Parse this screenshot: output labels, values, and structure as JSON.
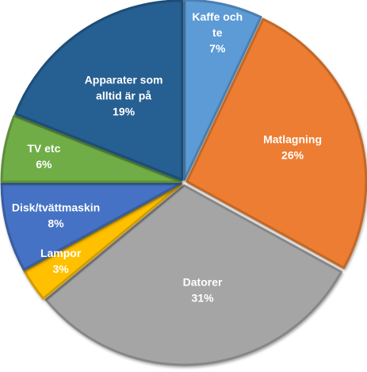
{
  "chart_data": {
    "type": "pie",
    "start_angle_deg": 0,
    "direction": "clockwise",
    "slices": [
      {
        "label_lines": [
          "Kaffe och",
          "te"
        ],
        "value_label": "7%",
        "value": 7,
        "color": "#5b9bd5"
      },
      {
        "label_lines": [
          "Matlagning"
        ],
        "value_label": "26%",
        "value": 26,
        "color": "#ed7d31"
      },
      {
        "label_lines": [
          "Datorer"
        ],
        "value_label": "31%",
        "value": 31,
        "color": "#a5a5a5"
      },
      {
        "label_lines": [
          "Lampor"
        ],
        "value_label": "3%",
        "value": 3,
        "color": "#ffc000"
      },
      {
        "label_lines": [
          "Disk/tvättmaskin"
        ],
        "value_label": "8%",
        "value": 8,
        "color": "#4472c4"
      },
      {
        "label_lines": [
          "TV etc"
        ],
        "value_label": "6%",
        "value": 6,
        "color": "#70ad47"
      },
      {
        "label_lines": [
          "Apparater som",
          "alltid är på"
        ],
        "value_label": "19%",
        "value": 19,
        "color": "#255e91"
      }
    ],
    "exploded": true,
    "legend": "none"
  }
}
